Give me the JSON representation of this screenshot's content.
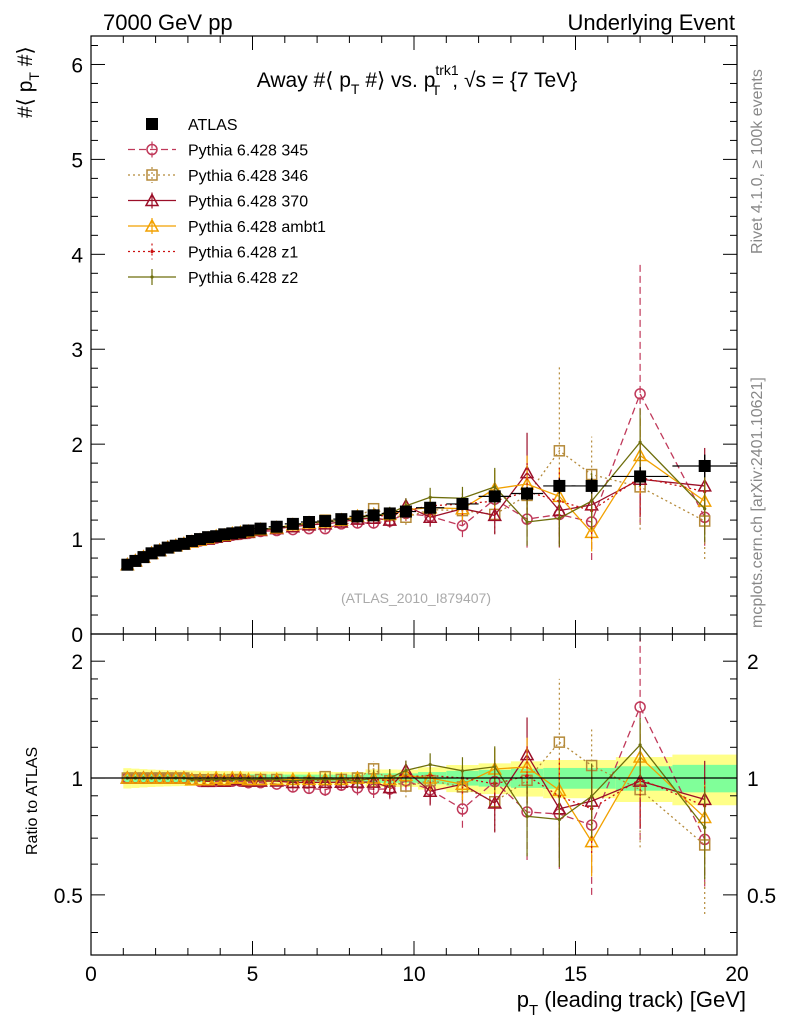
{
  "header": {
    "left": "7000 GeV pp",
    "right": "Underlying Event"
  },
  "side_text": {
    "rivet": "Rivet 4.1.0, ≥ 100k events",
    "site": "mcplots.cern.ch [arXiv:2401.10621]"
  },
  "colors": {
    "atlas": "#000000",
    "p345": "#c0395a",
    "p346": "#b58a3a",
    "p370": "#9b0f28",
    "ambt1": "#f2a100",
    "z1": "#cc1111",
    "z2": "#6e6e0c",
    "band_inner": "#80ff99",
    "band_outer": "#ffff88"
  },
  "chart_data": [
    {
      "type": "line",
      "panel": "main",
      "title": "Away #⟨ p_T #⟩ vs. p_T^trk1, √s = {7 TeV}",
      "title_parts": {
        "a": "Away #⟨ p",
        "b": "T",
        "c": " #⟩ vs. p",
        "d": "trk1",
        "e": "T",
        "f": ", √s = {7 TeV}"
      },
      "ylabel": "#⟨ p_T #⟩",
      "ylabel_parts": {
        "a": "#⟨ p",
        "b": "T",
        "c": " #⟩"
      },
      "analysis_tag": "(ATLAS_2010_I879407)",
      "xlim": [
        0,
        20
      ],
      "ylim": [
        0,
        6.3
      ],
      "yticks": [
        0,
        1,
        2,
        3,
        4,
        5,
        6
      ],
      "legend_position": "top-left",
      "x": [
        1.125,
        1.375,
        1.625,
        1.875,
        2.125,
        2.375,
        2.625,
        2.875,
        3.125,
        3.375,
        3.625,
        3.875,
        4.125,
        4.375,
        4.625,
        4.875,
        5.25,
        5.75,
        6.25,
        6.75,
        7.25,
        7.75,
        8.25,
        8.75,
        9.25,
        9.75,
        10.5,
        11.5,
        12.5,
        13.5,
        14.5,
        15.5,
        17.0,
        19.0
      ],
      "series": [
        {
          "name": "ATLAS",
          "key": "atlas",
          "values": [
            0.73,
            0.77,
            0.81,
            0.85,
            0.88,
            0.91,
            0.93,
            0.95,
            0.98,
            1.0,
            1.02,
            1.03,
            1.05,
            1.06,
            1.07,
            1.09,
            1.11,
            1.13,
            1.16,
            1.18,
            1.19,
            1.21,
            1.24,
            1.25,
            1.27,
            1.29,
            1.33,
            1.37,
            1.45,
            1.48,
            1.56,
            1.56,
            1.66,
            1.77
          ],
          "errors": [
            0.02,
            0.02,
            0.02,
            0.02,
            0.02,
            0.02,
            0.02,
            0.02,
            0.02,
            0.02,
            0.02,
            0.02,
            0.02,
            0.02,
            0.02,
            0.02,
            0.02,
            0.02,
            0.02,
            0.02,
            0.02,
            0.02,
            0.02,
            0.03,
            0.03,
            0.03,
            0.04,
            0.05,
            0.06,
            0.07,
            0.08,
            0.08,
            0.1,
            0.12
          ]
        },
        {
          "name": "Pythia 6.428 345",
          "key": "p345",
          "values": [
            0.73,
            0.77,
            0.81,
            0.85,
            0.88,
            0.91,
            0.93,
            0.95,
            0.97,
            0.98,
            1.0,
            1.01,
            1.03,
            1.04,
            1.05,
            1.06,
            1.08,
            1.09,
            1.1,
            1.11,
            1.11,
            1.16,
            1.17,
            1.17,
            1.19,
            1.27,
            1.24,
            1.14,
            1.42,
            1.21,
            1.26,
            1.18,
            2.53,
            1.23
          ],
          "errors": [
            0.01,
            0.01,
            0.01,
            0.01,
            0.01,
            0.01,
            0.01,
            0.01,
            0.01,
            0.01,
            0.01,
            0.01,
            0.01,
            0.01,
            0.01,
            0.02,
            0.02,
            0.02,
            0.03,
            0.03,
            0.04,
            0.04,
            0.05,
            0.06,
            0.07,
            0.08,
            0.1,
            0.12,
            0.2,
            0.3,
            0.35,
            0.4,
            1.38,
            0.3
          ]
        },
        {
          "name": "Pythia 6.428 346",
          "key": "p346",
          "values": [
            0.73,
            0.77,
            0.81,
            0.85,
            0.88,
            0.91,
            0.93,
            0.95,
            0.97,
            0.99,
            1.01,
            1.02,
            1.03,
            1.05,
            1.06,
            1.07,
            1.1,
            1.12,
            1.13,
            1.15,
            1.2,
            1.2,
            1.24,
            1.32,
            1.25,
            1.23,
            1.31,
            1.3,
            1.26,
            1.46,
            1.93,
            1.68,
            1.55,
            1.19
          ],
          "errors": [
            0.01,
            0.01,
            0.01,
            0.01,
            0.01,
            0.01,
            0.01,
            0.01,
            0.01,
            0.01,
            0.01,
            0.01,
            0.01,
            0.01,
            0.01,
            0.02,
            0.02,
            0.02,
            0.03,
            0.03,
            0.04,
            0.04,
            0.05,
            0.06,
            0.07,
            0.08,
            0.1,
            0.12,
            0.2,
            0.3,
            0.88,
            0.4,
            0.45,
            0.4
          ]
        },
        {
          "name": "Pythia 6.428 370",
          "key": "p370",
          "values": [
            0.73,
            0.77,
            0.81,
            0.85,
            0.88,
            0.91,
            0.93,
            0.95,
            0.97,
            0.99,
            1.0,
            1.02,
            1.03,
            1.05,
            1.06,
            1.07,
            1.09,
            1.11,
            1.13,
            1.15,
            1.16,
            1.18,
            1.21,
            1.22,
            1.2,
            1.35,
            1.23,
            1.32,
            1.25,
            1.7,
            1.3,
            1.36,
            1.63,
            1.56
          ],
          "errors": [
            0.01,
            0.01,
            0.01,
            0.01,
            0.01,
            0.01,
            0.01,
            0.01,
            0.01,
            0.01,
            0.01,
            0.01,
            0.01,
            0.01,
            0.01,
            0.02,
            0.02,
            0.02,
            0.03,
            0.03,
            0.04,
            0.04,
            0.05,
            0.06,
            0.07,
            0.08,
            0.1,
            0.12,
            0.2,
            0.42,
            0.35,
            0.3,
            0.4,
            0.4
          ]
        },
        {
          "name": "Pythia 6.428 ambt1",
          "key": "ambt1",
          "values": [
            0.73,
            0.77,
            0.81,
            0.85,
            0.88,
            0.91,
            0.93,
            0.95,
            0.97,
            0.99,
            1.01,
            1.03,
            1.04,
            1.06,
            1.07,
            1.08,
            1.1,
            1.12,
            1.15,
            1.17,
            1.18,
            1.2,
            1.24,
            1.25,
            1.26,
            1.31,
            1.33,
            1.32,
            1.53,
            1.58,
            1.45,
            1.07,
            1.88,
            1.4
          ],
          "errors": [
            0.01,
            0.01,
            0.01,
            0.01,
            0.01,
            0.01,
            0.01,
            0.01,
            0.01,
            0.01,
            0.01,
            0.01,
            0.01,
            0.01,
            0.01,
            0.02,
            0.02,
            0.02,
            0.03,
            0.03,
            0.04,
            0.04,
            0.05,
            0.06,
            0.07,
            0.08,
            0.1,
            0.12,
            0.2,
            0.3,
            0.3,
            0.2,
            0.4,
            0.3
          ]
        },
        {
          "name": "Pythia 6.428 z1",
          "key": "z1",
          "values": [
            0.73,
            0.77,
            0.81,
            0.85,
            0.88,
            0.91,
            0.93,
            0.95,
            0.97,
            0.99,
            1.01,
            1.02,
            1.04,
            1.05,
            1.06,
            1.08,
            1.1,
            1.12,
            1.14,
            1.16,
            1.18,
            1.2,
            1.23,
            1.24,
            1.25,
            1.3,
            1.35,
            1.37,
            1.4,
            1.5,
            1.4,
            1.3,
            1.65,
            1.5
          ],
          "errors": [
            0.01,
            0.01,
            0.01,
            0.01,
            0.01,
            0.01,
            0.01,
            0.01,
            0.01,
            0.01,
            0.01,
            0.01,
            0.01,
            0.01,
            0.01,
            0.02,
            0.02,
            0.02,
            0.03,
            0.03,
            0.04,
            0.04,
            0.05,
            0.06,
            0.07,
            0.08,
            0.1,
            0.12,
            0.2,
            0.3,
            0.35,
            0.3,
            0.4,
            0.3
          ]
        },
        {
          "name": "Pythia 6.428 z2",
          "key": "z2",
          "values": [
            0.73,
            0.77,
            0.81,
            0.85,
            0.88,
            0.91,
            0.93,
            0.95,
            0.97,
            0.99,
            1.01,
            1.02,
            1.04,
            1.05,
            1.06,
            1.08,
            1.1,
            1.12,
            1.14,
            1.17,
            1.18,
            1.2,
            1.22,
            1.25,
            1.27,
            1.35,
            1.44,
            1.43,
            1.55,
            1.18,
            1.22,
            1.4,
            2.02,
            1.32
          ],
          "errors": [
            0.01,
            0.01,
            0.01,
            0.01,
            0.01,
            0.01,
            0.01,
            0.01,
            0.01,
            0.01,
            0.01,
            0.01,
            0.01,
            0.01,
            0.01,
            0.02,
            0.02,
            0.02,
            0.03,
            0.03,
            0.04,
            0.04,
            0.05,
            0.06,
            0.07,
            0.08,
            0.1,
            0.12,
            0.2,
            0.25,
            0.3,
            0.3,
            0.35,
            0.35
          ]
        }
      ]
    },
    {
      "type": "line",
      "panel": "ratio",
      "ylabel": "Ratio to ATLAS",
      "xlabel": "p_T (leading track) [GeV]",
      "xlabel_parts": {
        "a": "p",
        "b": "T",
        "c": " (leading track) [GeV]"
      },
      "xlim": [
        0,
        20
      ],
      "ylim": [
        0.35,
        2.35
      ],
      "yscale": "log",
      "yticks": [
        0.5,
        1,
        2
      ],
      "xticks": [
        0,
        5,
        10,
        15,
        20
      ],
      "reference": 1,
      "note": "ratio series = Pythia values / ATLAS values; band = ATLAS relative uncertainty"
    }
  ]
}
